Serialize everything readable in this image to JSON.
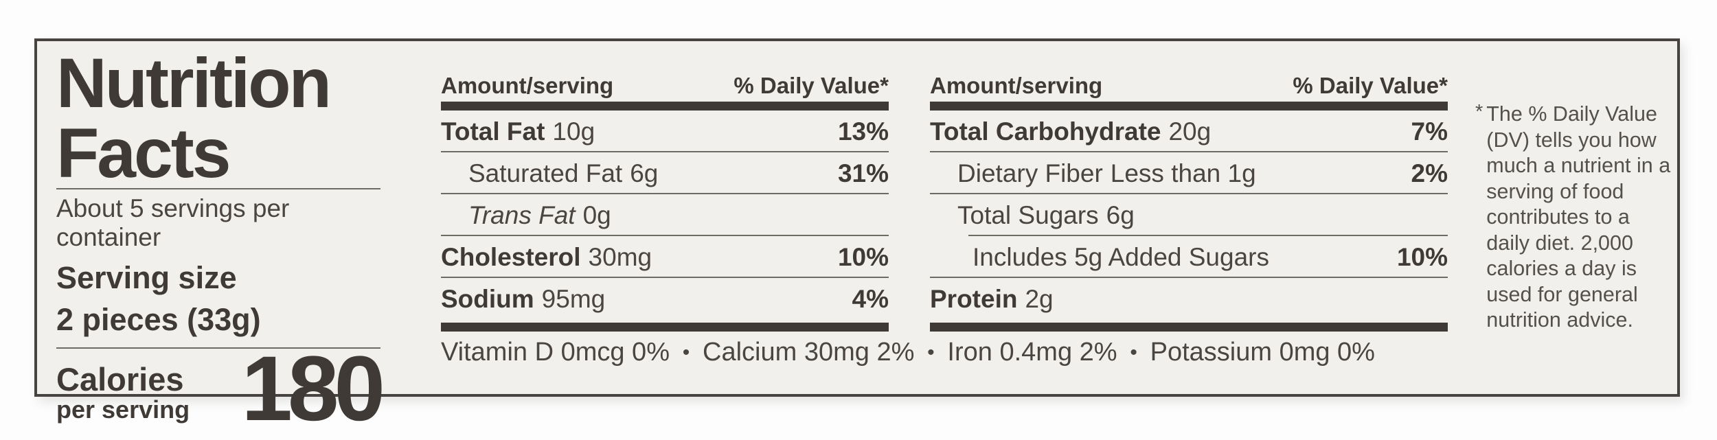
{
  "label": {
    "title_line1": "Nutrition",
    "title_line2": "Facts",
    "servings_per_container": "About 5 servings per container",
    "serving_size_label": "Serving size",
    "serving_size_value": "2 pieces (33g)",
    "calories_label": "Calories",
    "calories_sublabel": "per serving",
    "calories_value": "180"
  },
  "panel1": {
    "header_amount": "Amount/serving",
    "header_dv": "% Daily Value*",
    "rows": [
      {
        "name": "Total Fat",
        "amount": "10g",
        "dv": "13%"
      },
      {
        "name": "Saturated Fat",
        "amount": "6g",
        "dv": "31%"
      },
      {
        "name": "Trans Fat",
        "amount": "0g",
        "dv": ""
      },
      {
        "name": "Cholesterol",
        "amount": "30mg",
        "dv": "10%"
      },
      {
        "name": "Sodium",
        "amount": "95mg",
        "dv": "4%"
      }
    ]
  },
  "panel2": {
    "header_amount": "Amount/serving",
    "header_dv": "% Daily Value*",
    "rows": [
      {
        "name": "Total Carbohydrate",
        "amount": "20g",
        "dv": "7%"
      },
      {
        "name": "Dietary Fiber",
        "amount": "Less than 1g",
        "dv": "2%"
      },
      {
        "name": "Total Sugars",
        "amount": "6g",
        "dv": ""
      },
      {
        "name": "Includes 5g Added Sugars",
        "amount": "",
        "dv": "10%"
      },
      {
        "name": "Protein",
        "amount": "2g",
        "dv": ""
      }
    ]
  },
  "micronutrients": {
    "bullet": "•",
    "items": [
      "Vitamin D 0mcg 0%",
      "Calcium 30mg 2%",
      "Iron 0.4mg 2%",
      "Potassium 0mg 0%"
    ]
  },
  "footnote": {
    "marker": "*",
    "text": "The % Daily Value (DV) tells you how much a nutrient in a serving of food contributes to a daily diet. 2,000 calories a day is used for general nutrition advice."
  },
  "colors": {
    "ink": "#3f3a36",
    "text": "#4a4541",
    "muted": "#54504c",
    "hairline": "#6e6a64",
    "label_bg": "#f2f0ec",
    "page_bg": "#fdfdfd"
  }
}
